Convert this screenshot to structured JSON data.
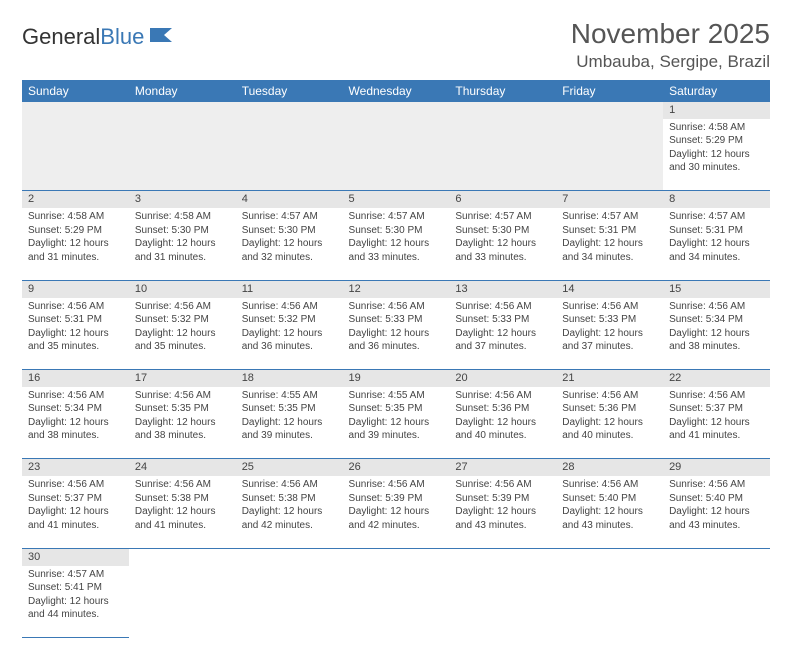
{
  "brand": {
    "part1": "General",
    "part2": "Blue"
  },
  "title": "November 2025",
  "location": "Umbauba, Sergipe, Brazil",
  "colors": {
    "header_bg": "#3a78b5",
    "numrow_bg": "#e6e6e6",
    "border": "#3a78b5"
  },
  "weekdays": [
    "Sunday",
    "Monday",
    "Tuesday",
    "Wednesday",
    "Thursday",
    "Friday",
    "Saturday"
  ],
  "weeks": [
    [
      null,
      null,
      null,
      null,
      null,
      null,
      {
        "n": "1",
        "sr": "Sunrise: 4:58 AM",
        "ss": "Sunset: 5:29 PM",
        "dl": "Daylight: 12 hours and 30 minutes."
      }
    ],
    [
      {
        "n": "2",
        "sr": "Sunrise: 4:58 AM",
        "ss": "Sunset: 5:29 PM",
        "dl": "Daylight: 12 hours and 31 minutes."
      },
      {
        "n": "3",
        "sr": "Sunrise: 4:58 AM",
        "ss": "Sunset: 5:30 PM",
        "dl": "Daylight: 12 hours and 31 minutes."
      },
      {
        "n": "4",
        "sr": "Sunrise: 4:57 AM",
        "ss": "Sunset: 5:30 PM",
        "dl": "Daylight: 12 hours and 32 minutes."
      },
      {
        "n": "5",
        "sr": "Sunrise: 4:57 AM",
        "ss": "Sunset: 5:30 PM",
        "dl": "Daylight: 12 hours and 33 minutes."
      },
      {
        "n": "6",
        "sr": "Sunrise: 4:57 AM",
        "ss": "Sunset: 5:30 PM",
        "dl": "Daylight: 12 hours and 33 minutes."
      },
      {
        "n": "7",
        "sr": "Sunrise: 4:57 AM",
        "ss": "Sunset: 5:31 PM",
        "dl": "Daylight: 12 hours and 34 minutes."
      },
      {
        "n": "8",
        "sr": "Sunrise: 4:57 AM",
        "ss": "Sunset: 5:31 PM",
        "dl": "Daylight: 12 hours and 34 minutes."
      }
    ],
    [
      {
        "n": "9",
        "sr": "Sunrise: 4:56 AM",
        "ss": "Sunset: 5:31 PM",
        "dl": "Daylight: 12 hours and 35 minutes."
      },
      {
        "n": "10",
        "sr": "Sunrise: 4:56 AM",
        "ss": "Sunset: 5:32 PM",
        "dl": "Daylight: 12 hours and 35 minutes."
      },
      {
        "n": "11",
        "sr": "Sunrise: 4:56 AM",
        "ss": "Sunset: 5:32 PM",
        "dl": "Daylight: 12 hours and 36 minutes."
      },
      {
        "n": "12",
        "sr": "Sunrise: 4:56 AM",
        "ss": "Sunset: 5:33 PM",
        "dl": "Daylight: 12 hours and 36 minutes."
      },
      {
        "n": "13",
        "sr": "Sunrise: 4:56 AM",
        "ss": "Sunset: 5:33 PM",
        "dl": "Daylight: 12 hours and 37 minutes."
      },
      {
        "n": "14",
        "sr": "Sunrise: 4:56 AM",
        "ss": "Sunset: 5:33 PM",
        "dl": "Daylight: 12 hours and 37 minutes."
      },
      {
        "n": "15",
        "sr": "Sunrise: 4:56 AM",
        "ss": "Sunset: 5:34 PM",
        "dl": "Daylight: 12 hours and 38 minutes."
      }
    ],
    [
      {
        "n": "16",
        "sr": "Sunrise: 4:56 AM",
        "ss": "Sunset: 5:34 PM",
        "dl": "Daylight: 12 hours and 38 minutes."
      },
      {
        "n": "17",
        "sr": "Sunrise: 4:56 AM",
        "ss": "Sunset: 5:35 PM",
        "dl": "Daylight: 12 hours and 38 minutes."
      },
      {
        "n": "18",
        "sr": "Sunrise: 4:55 AM",
        "ss": "Sunset: 5:35 PM",
        "dl": "Daylight: 12 hours and 39 minutes."
      },
      {
        "n": "19",
        "sr": "Sunrise: 4:55 AM",
        "ss": "Sunset: 5:35 PM",
        "dl": "Daylight: 12 hours and 39 minutes."
      },
      {
        "n": "20",
        "sr": "Sunrise: 4:56 AM",
        "ss": "Sunset: 5:36 PM",
        "dl": "Daylight: 12 hours and 40 minutes."
      },
      {
        "n": "21",
        "sr": "Sunrise: 4:56 AM",
        "ss": "Sunset: 5:36 PM",
        "dl": "Daylight: 12 hours and 40 minutes."
      },
      {
        "n": "22",
        "sr": "Sunrise: 4:56 AM",
        "ss": "Sunset: 5:37 PM",
        "dl": "Daylight: 12 hours and 41 minutes."
      }
    ],
    [
      {
        "n": "23",
        "sr": "Sunrise: 4:56 AM",
        "ss": "Sunset: 5:37 PM",
        "dl": "Daylight: 12 hours and 41 minutes."
      },
      {
        "n": "24",
        "sr": "Sunrise: 4:56 AM",
        "ss": "Sunset: 5:38 PM",
        "dl": "Daylight: 12 hours and 41 minutes."
      },
      {
        "n": "25",
        "sr": "Sunrise: 4:56 AM",
        "ss": "Sunset: 5:38 PM",
        "dl": "Daylight: 12 hours and 42 minutes."
      },
      {
        "n": "26",
        "sr": "Sunrise: 4:56 AM",
        "ss": "Sunset: 5:39 PM",
        "dl": "Daylight: 12 hours and 42 minutes."
      },
      {
        "n": "27",
        "sr": "Sunrise: 4:56 AM",
        "ss": "Sunset: 5:39 PM",
        "dl": "Daylight: 12 hours and 43 minutes."
      },
      {
        "n": "28",
        "sr": "Sunrise: 4:56 AM",
        "ss": "Sunset: 5:40 PM",
        "dl": "Daylight: 12 hours and 43 minutes."
      },
      {
        "n": "29",
        "sr": "Sunrise: 4:56 AM",
        "ss": "Sunset: 5:40 PM",
        "dl": "Daylight: 12 hours and 43 minutes."
      }
    ],
    [
      {
        "n": "30",
        "sr": "Sunrise: 4:57 AM",
        "ss": "Sunset: 5:41 PM",
        "dl": "Daylight: 12 hours and 44 minutes."
      },
      null,
      null,
      null,
      null,
      null,
      null
    ]
  ]
}
